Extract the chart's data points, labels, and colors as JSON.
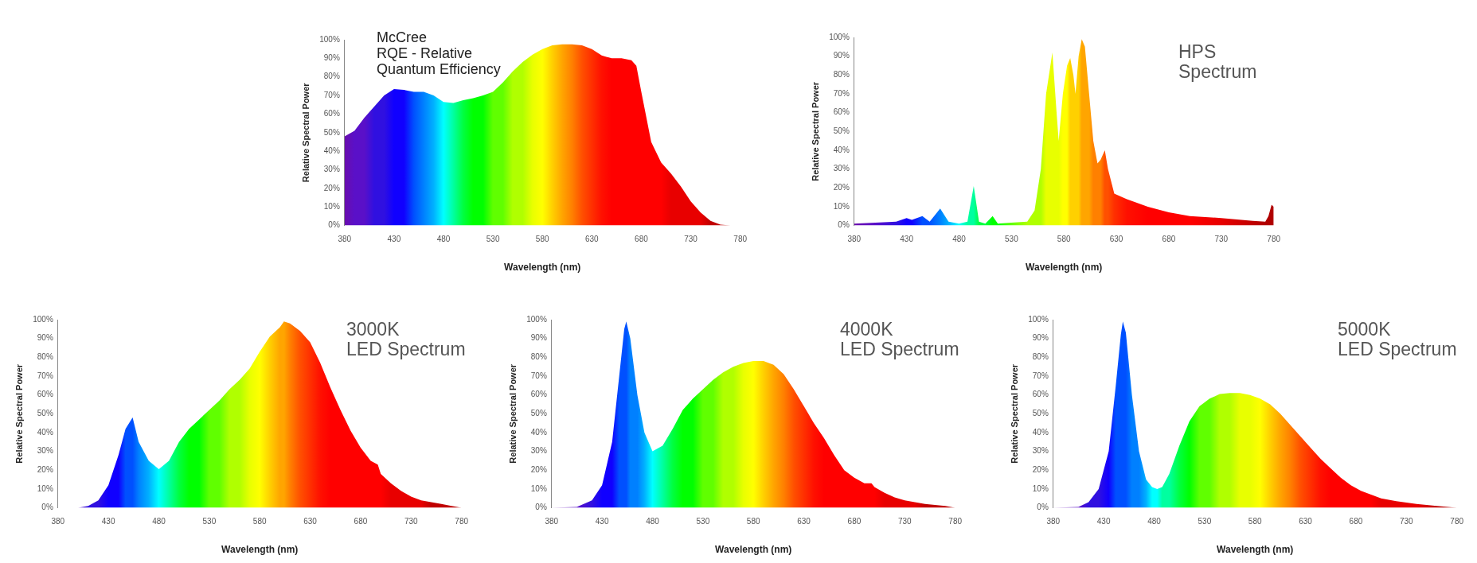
{
  "chart_data": [
    {
      "type": "area",
      "title": "McCree\nRQE - Relative\nQuantum Efficiency",
      "xlabel": "Wavelength (nm)",
      "ylabel": "Relative Spectral Power",
      "x": [
        380,
        390,
        400,
        410,
        420,
        430,
        440,
        450,
        460,
        470,
        480,
        490,
        500,
        510,
        520,
        530,
        540,
        550,
        560,
        570,
        580,
        590,
        600,
        610,
        620,
        630,
        640,
        650,
        660,
        670,
        675,
        680,
        690,
        700,
        710,
        720,
        730,
        740,
        750,
        760,
        770,
        780
      ],
      "values": [
        48,
        51,
        58,
        64,
        70,
        73.5,
        73,
        72,
        72,
        70,
        66.5,
        66,
        67.5,
        68.5,
        70,
        72,
        77,
        83,
        88,
        92,
        95,
        97,
        97.5,
        97.5,
        97,
        95,
        91.5,
        90,
        90,
        89,
        86,
        72,
        45,
        34,
        28,
        21,
        13,
        7,
        2.5,
        0.5,
        0,
        0
      ],
      "colors": [
        "#6a0dad",
        "#5a10c8",
        "#5a10c8",
        "#3010e0",
        "#3010e0",
        "#1000ff",
        "#1000ff",
        "#0050ff",
        "#0080ff",
        "#00b0ff",
        "#00ffff",
        "#00ffa0",
        "#00ff40",
        "#00ff00",
        "#00ff00",
        "#60ff00",
        "#60ff00",
        "#b0ff00",
        "#b0ff00",
        "#e8ff00",
        "#ffff00",
        "#ffd000",
        "#ffa500",
        "#ff8000",
        "#ff5000",
        "#ff3000",
        "#ff1000",
        "#ff0000",
        "#ff0000",
        "#ff0000",
        "#ff0000",
        "#ff0000",
        "#ff0000",
        "#ff0000",
        "#e80000",
        "#e80000",
        "#e80000",
        "#e80000",
        "#c00000",
        "#c00000",
        "#c00000",
        "#b00000"
      ],
      "xlim": [
        380,
        780
      ],
      "xticks": [
        380,
        430,
        480,
        530,
        580,
        630,
        680,
        730,
        780
      ],
      "ylim": [
        0,
        100
      ],
      "yticks": [
        {
          "value": 0,
          "label": "0%"
        },
        {
          "value": 10,
          "label": "10%"
        },
        {
          "value": 20,
          "label": "20%"
        },
        {
          "value": 30,
          "label": "30%"
        },
        {
          "value": 40,
          "label": "40%"
        },
        {
          "value": 50,
          "label": "50%"
        },
        {
          "value": 60,
          "label": "60%"
        },
        {
          "value": 70,
          "label": "70%"
        },
        {
          "value": 80,
          "label": "80%"
        },
        {
          "value": 90,
          "label": "90%"
        },
        {
          "value": 100,
          "label": "100%"
        }
      ]
    },
    {
      "type": "area",
      "title": "HPS\nSpectrum",
      "xlabel": "Wavelength (nm)",
      "ylabel": "Relative Spectral Power",
      "x": [
        380,
        400,
        420,
        430,
        435,
        445,
        452,
        462,
        470,
        480,
        488,
        494,
        499,
        505,
        512,
        517,
        530,
        545,
        552,
        558,
        563,
        569,
        573,
        575,
        579,
        583,
        586,
        589,
        591,
        594,
        597,
        600,
        604,
        608,
        612,
        615,
        619,
        622,
        628,
        640,
        660,
        680,
        700,
        730,
        760,
        772,
        775,
        778,
        780
      ],
      "values": [
        1,
        1.5,
        2,
        4,
        3,
        5,
        2,
        9,
        2,
        1,
        2,
        21,
        2,
        1,
        5,
        1,
        1.5,
        2,
        8,
        30,
        70,
        92,
        60,
        45,
        70,
        85,
        89,
        80,
        70,
        90,
        99,
        95,
        70,
        45,
        33,
        35,
        40,
        30,
        17,
        14,
        10,
        7,
        5,
        4,
        2.5,
        2,
        5,
        11,
        10
      ],
      "colors": [
        "#6a0dad",
        "#5a10c8",
        "#3010e0",
        "#1000ff",
        "#1000ff",
        "#0050ff",
        "#0050ff",
        "#0080ff",
        "#00b0ff",
        "#00ffff",
        "#00ffa0",
        "#00ffa0",
        "#00ff40",
        "#00ff40",
        "#00ff00",
        "#00ff00",
        "#60ff00",
        "#b0ff00",
        "#b0ff00",
        "#b0ff00",
        "#e8ff00",
        "#e8ff00",
        "#e8ff00",
        "#e8ff00",
        "#ffff00",
        "#ffff00",
        "#ffd000",
        "#ffd000",
        "#ffd000",
        "#ffd000",
        "#ffa500",
        "#ffa500",
        "#ffa500",
        "#ff8000",
        "#ff8000",
        "#ff8000",
        "#ff5000",
        "#ff5000",
        "#ff3000",
        "#ff1000",
        "#ff0000",
        "#ff0000",
        "#ff0000",
        "#e80000",
        "#c00000",
        "#b00000",
        "#b00000",
        "#b00000",
        "#b00000"
      ],
      "xlim": [
        380,
        780
      ],
      "xticks": [
        380,
        430,
        480,
        530,
        580,
        630,
        680,
        730,
        780
      ],
      "ylim": [
        0,
        100
      ],
      "yticks": [
        {
          "value": 0,
          "label": "0%"
        },
        {
          "value": 10,
          "label": "10%"
        },
        {
          "value": 20,
          "label": "20%"
        },
        {
          "value": 30,
          "label": "30%"
        },
        {
          "value": 40,
          "label": "40%"
        },
        {
          "value": 50,
          "label": "50%"
        },
        {
          "value": 60,
          "label": "60%"
        },
        {
          "value": 70,
          "label": "70%"
        },
        {
          "value": 80,
          "label": "80%"
        },
        {
          "value": 90,
          "label": "90%"
        },
        {
          "value": 100,
          "label": "100%"
        }
      ]
    },
    {
      "type": "area",
      "title": "3000K\nLED Spectrum",
      "xlabel": "Wavelength (nm)",
      "ylabel": "Relative Spectral Power",
      "x": [
        380,
        400,
        410,
        420,
        430,
        440,
        447,
        454,
        460,
        470,
        480,
        490,
        500,
        510,
        520,
        530,
        540,
        550,
        560,
        570,
        580,
        590,
        600,
        604,
        610,
        620,
        630,
        640,
        650,
        660,
        670,
        680,
        690,
        697,
        700,
        710,
        720,
        730,
        740,
        750,
        760,
        770,
        780
      ],
      "values": [
        0,
        0,
        1,
        4,
        12,
        28,
        42,
        48,
        35,
        25,
        20.5,
        25,
        35,
        42,
        47,
        52,
        57,
        63,
        68,
        74,
        83,
        91,
        96,
        99,
        98,
        94,
        88,
        77,
        64,
        52,
        41,
        32,
        25,
        23,
        18,
        13,
        9,
        6,
        4,
        3,
        2,
        1,
        0
      ],
      "colors": [
        "#6a0dad",
        "#5a10c8",
        "#3010e0",
        "#3010e0",
        "#1000ff",
        "#1000ff",
        "#0050ff",
        "#0050ff",
        "#0080ff",
        "#00b0ff",
        "#00ffff",
        "#00ffa0",
        "#00ff40",
        "#00ff00",
        "#00ff00",
        "#60ff00",
        "#60ff00",
        "#b0ff00",
        "#b0ff00",
        "#e8ff00",
        "#ffff00",
        "#ffd000",
        "#ffa500",
        "#ffa500",
        "#ff8000",
        "#ff5000",
        "#ff3000",
        "#ff1000",
        "#ff0000",
        "#ff0000",
        "#ff0000",
        "#ff0000",
        "#ff0000",
        "#ff0000",
        "#ff0000",
        "#e80000",
        "#e80000",
        "#e80000",
        "#e80000",
        "#c00000",
        "#c00000",
        "#c00000",
        "#b00000"
      ],
      "xlim": [
        380,
        780
      ],
      "xticks": [
        380,
        430,
        480,
        530,
        580,
        630,
        680,
        730,
        780
      ],
      "ylim": [
        0,
        100
      ],
      "yticks": [
        {
          "value": 0,
          "label": "0%"
        },
        {
          "value": 10,
          "label": "10%"
        },
        {
          "value": 20,
          "label": "20%"
        },
        {
          "value": 30,
          "label": "30%"
        },
        {
          "value": 40,
          "label": "40%"
        },
        {
          "value": 50,
          "label": "50%"
        },
        {
          "value": 60,
          "label": "60%"
        },
        {
          "value": 70,
          "label": "70%"
        },
        {
          "value": 80,
          "label": "80%"
        },
        {
          "value": 90,
          "label": "90%"
        },
        {
          "value": 100,
          "label": "100%"
        }
      ]
    },
    {
      "type": "area",
      "title": "4000K\nLED Spectrum",
      "xlabel": "Wavelength (nm)",
      "ylabel": "Relative Spectral Power",
      "x": [
        380,
        405,
        420,
        430,
        440,
        447,
        452,
        454,
        458,
        465,
        472,
        480,
        490,
        500,
        510,
        520,
        530,
        540,
        550,
        560,
        570,
        580,
        590,
        600,
        610,
        620,
        630,
        640,
        650,
        660,
        670,
        680,
        690,
        697,
        700,
        710,
        720,
        730,
        740,
        750,
        760,
        770,
        780
      ],
      "values": [
        0,
        0.5,
        4,
        12,
        35,
        70,
        95,
        99,
        90,
        60,
        40,
        30,
        33,
        42,
        52,
        58,
        63,
        68,
        72,
        75,
        77,
        78,
        78,
        76,
        71,
        63,
        54,
        45,
        37,
        28,
        20,
        16,
        13,
        13,
        11,
        8,
        5.5,
        4,
        3,
        2,
        1.5,
        1,
        0
      ],
      "colors": [
        "#6a0dad",
        "#5a10c8",
        "#3010e0",
        "#1000ff",
        "#1000ff",
        "#0050ff",
        "#0050ff",
        "#0050ff",
        "#0080ff",
        "#0080ff",
        "#00b0ff",
        "#00ffff",
        "#00ffa0",
        "#00ff40",
        "#00ff00",
        "#00ff00",
        "#60ff00",
        "#60ff00",
        "#b0ff00",
        "#b0ff00",
        "#e8ff00",
        "#ffff00",
        "#ffd000",
        "#ffa500",
        "#ff8000",
        "#ff5000",
        "#ff3000",
        "#ff1000",
        "#ff0000",
        "#ff0000",
        "#ff0000",
        "#ff0000",
        "#ff0000",
        "#ff0000",
        "#ff0000",
        "#e80000",
        "#e80000",
        "#e80000",
        "#e80000",
        "#c00000",
        "#c00000",
        "#c00000",
        "#b00000"
      ],
      "xlim": [
        380,
        780
      ],
      "xticks": [
        380,
        430,
        480,
        530,
        580,
        630,
        680,
        730,
        780
      ],
      "ylim": [
        0,
        100
      ],
      "yticks": [
        {
          "value": 0,
          "label": "0%"
        },
        {
          "value": 10,
          "label": "10%"
        },
        {
          "value": 20,
          "label": "20%"
        },
        {
          "value": 30,
          "label": "30%"
        },
        {
          "value": 40,
          "label": "40%"
        },
        {
          "value": 50,
          "label": "50%"
        },
        {
          "value": 60,
          "label": "60%"
        },
        {
          "value": 70,
          "label": "70%"
        },
        {
          "value": 80,
          "label": "80%"
        },
        {
          "value": 90,
          "label": "90%"
        },
        {
          "value": 100,
          "label": "100%"
        }
      ]
    },
    {
      "type": "area",
      "title": "5000K\nLED Spectrum",
      "xlabel": "Wavelength (nm)",
      "ylabel": "Relative Spectral Power",
      "x": [
        380,
        405,
        415,
        425,
        435,
        442,
        447,
        449,
        452,
        458,
        465,
        472,
        478,
        483,
        488,
        495,
        505,
        515,
        525,
        535,
        545,
        555,
        565,
        575,
        585,
        595,
        605,
        615,
        625,
        635,
        645,
        655,
        665,
        675,
        685,
        695,
        705,
        720,
        740,
        760,
        780
      ],
      "values": [
        0,
        0.5,
        3,
        10,
        30,
        65,
        92,
        99,
        93,
        60,
        30,
        15,
        11,
        10,
        11,
        18,
        33,
        46,
        54,
        58,
        60.5,
        61,
        61,
        60,
        58,
        55,
        50,
        44,
        38,
        32,
        26,
        21,
        16,
        12,
        9,
        7,
        5,
        3.5,
        2,
        1,
        0
      ],
      "colors": [
        "#6a0dad",
        "#5a10c8",
        "#3010e0",
        "#3010e0",
        "#1000ff",
        "#0050ff",
        "#0050ff",
        "#0050ff",
        "#0050ff",
        "#0080ff",
        "#0080ff",
        "#00b0ff",
        "#00ffff",
        "#00ffff",
        "#00ffa0",
        "#00ffa0",
        "#00ff40",
        "#00ff00",
        "#60ff00",
        "#60ff00",
        "#b0ff00",
        "#b0ff00",
        "#e8ff00",
        "#e8ff00",
        "#ffff00",
        "#ffd000",
        "#ffa500",
        "#ff8000",
        "#ff5000",
        "#ff3000",
        "#ff1000",
        "#ff0000",
        "#ff0000",
        "#ff0000",
        "#ff0000",
        "#ff0000",
        "#e80000",
        "#e80000",
        "#e80000",
        "#c00000",
        "#b00000"
      ],
      "xlim": [
        380,
        780
      ],
      "xticks": [
        380,
        430,
        480,
        530,
        580,
        630,
        680,
        730,
        780
      ],
      "ylim": [
        0,
        100
      ],
      "yticks": [
        {
          "value": 0,
          "label": "0%"
        },
        {
          "value": 10,
          "label": "10%"
        },
        {
          "value": 20,
          "label": "20%"
        },
        {
          "value": 30,
          "label": "30%"
        },
        {
          "value": 40,
          "label": "40%"
        },
        {
          "value": 50,
          "label": "50%"
        },
        {
          "value": 60,
          "label": "60%"
        },
        {
          "value": 70,
          "label": "70%"
        },
        {
          "value": 80,
          "label": "80%"
        },
        {
          "value": 90,
          "label": "90%"
        },
        {
          "value": 100,
          "label": "100%"
        }
      ]
    }
  ]
}
